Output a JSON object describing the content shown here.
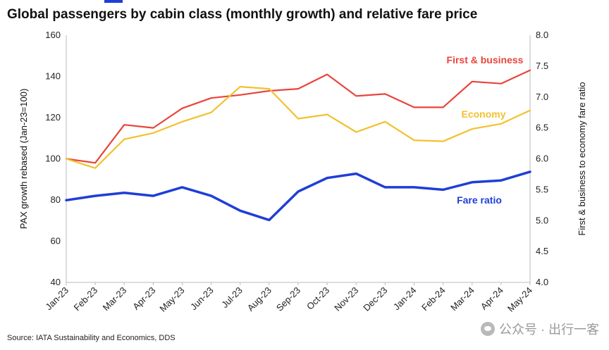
{
  "title": "Global passengers by cabin class (monthly growth) and relative fare price",
  "source": "Source: IATA Sustainability and Economics, DDS",
  "watermark": "公众号 · 出行一客",
  "chart_data": {
    "type": "line",
    "title": "Global passengers by cabin class (monthly growth) and relative fare price",
    "categories": [
      "Jan-23",
      "Feb-23",
      "Mar-23",
      "Apr-23",
      "May-23",
      "Jun-23",
      "Jul-23",
      "Aug-23",
      "Sep-23",
      "Oct-23",
      "Nov-23",
      "Dec-23",
      "Jan-24",
      "Feb-24",
      "Mar-24",
      "Apr-24",
      "May-24"
    ],
    "ylabel": "PAX growth rebased (Jan-23=100)",
    "y2label": "First & business to economy fare ratio",
    "ylim": [
      40,
      160
    ],
    "y2lim": [
      4.0,
      8.0
    ],
    "yticks": [
      "40",
      "60",
      "80",
      "100",
      "120",
      "140",
      "160"
    ],
    "y2ticks": [
      "4.0",
      "4.5",
      "5.0",
      "5.5",
      "6.0",
      "6.5",
      "7.0",
      "7.5",
      "8.0"
    ],
    "grid": false,
    "series": [
      {
        "name": "First & business",
        "axis": "left",
        "color": "#e8453c",
        "values": [
          100,
          98,
          116.5,
          115,
          124.5,
          129.5,
          131,
          133,
          134,
          141,
          130.5,
          131.5,
          125,
          125,
          137.5,
          136.5,
          143
        ]
      },
      {
        "name": "Economy",
        "axis": "left",
        "color": "#f2c12e",
        "values": [
          100,
          95.5,
          109.5,
          112.5,
          118,
          122.5,
          135,
          134,
          119.5,
          121.5,
          113,
          118,
          109,
          108.5,
          114.5,
          117,
          123.5
        ]
      },
      {
        "name": "Fare ratio",
        "axis": "right",
        "color": "#1f3ed6",
        "values": [
          5.33,
          5.4,
          5.45,
          5.4,
          5.54,
          5.4,
          5.16,
          5.01,
          5.47,
          5.69,
          5.76,
          5.54,
          5.54,
          5.5,
          5.62,
          5.65,
          5.79
        ]
      }
    ]
  }
}
